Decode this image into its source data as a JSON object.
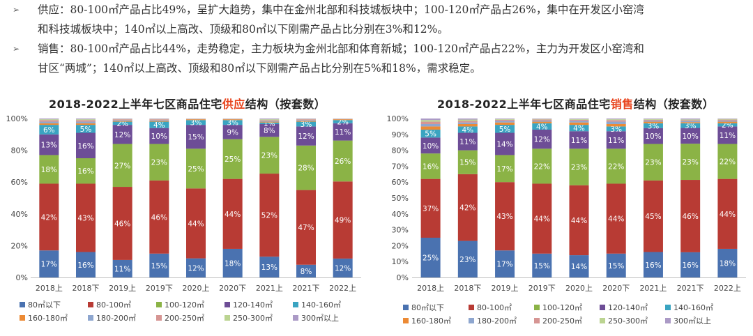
{
  "bullets": [
    {
      "marker": "➢",
      "lines": [
        "供应：80-100㎡产品占比49%，呈扩大趋势，集中在金州北部和科技城板块中；100-120㎡产品占26%，集中在开发区小窑湾",
        "和科技城板块中；140㎡以上高改、顶级和80㎡以下刚需产品占比分别在3%和12%。"
      ]
    },
    {
      "marker": "➢",
      "lines": [
        "销售：80-100㎡产品占比44%，走势稳定，主力板块为金州北部和体育新城；100-120㎡产品占22%，主力为开发区小窑湾和",
        "甘区“两城”；140㎡以上高改、顶级和80㎡以下刚需产品占比分别在5%和18%，需求稳定。"
      ]
    }
  ],
  "legend_labels": [
    "80㎡以下",
    "80-100㎡",
    "100-120㎡",
    "120-140㎡",
    "140-160㎡",
    "160-180㎡",
    "180-200㎡",
    "200-250㎡",
    "250-300㎡",
    "300㎡以上"
  ],
  "legend_colors": [
    "#4a72b0",
    "#b83b34",
    "#8bb346",
    "#6d4d96",
    "#3aa4c1",
    "#ec8a34",
    "#8ea6cf",
    "#d69593",
    "#bbd491",
    "#ab9ac6"
  ],
  "chart_data": [
    {
      "type": "bar",
      "stacked": true,
      "title_pre": "2018-2022上半年七区商品住宅",
      "title_hl": "供应",
      "title_post": "结构（按套数）",
      "categories": [
        "2018上",
        "2018下",
        "2019上",
        "2019下",
        "2020上",
        "2020下",
        "2021上",
        "2021下",
        "2022上"
      ],
      "ylim": [
        0,
        100
      ],
      "yticks": [
        "0%",
        "20%",
        "40%",
        "60%",
        "80%",
        "100%"
      ],
      "series": [
        {
          "values": [
            17,
            16,
            11,
            15,
            12,
            18,
            13,
            8,
            12
          ],
          "labels": [
            "17%",
            "16%",
            "11%",
            "15%",
            "12%",
            "18%",
            "13%",
            "8%",
            "12%"
          ]
        },
        {
          "values": [
            42,
            43,
            46,
            46,
            44,
            44,
            52,
            47,
            49
          ],
          "labels": [
            "42%",
            "43%",
            "46%",
            "46%",
            "44%",
            "44%",
            "52%",
            "47%",
            "49%"
          ]
        },
        {
          "values": [
            18,
            16,
            27,
            23,
            25,
            25,
            23,
            28,
            26
          ],
          "labels": [
            "18%",
            "16%",
            "27%",
            "23%",
            "25%",
            "25%",
            "23%",
            "28%",
            "26%"
          ]
        },
        {
          "values": [
            13,
            16,
            12,
            10,
            15,
            9,
            8,
            12,
            11
          ],
          "labels": [
            "13%",
            "16%",
            "12%",
            "10%",
            "15%",
            "9%",
            "8%",
            "12%",
            "11%"
          ]
        },
        {
          "values": [
            6,
            5,
            2,
            4,
            3,
            3,
            1,
            3,
            2
          ],
          "labels": [
            "6%",
            "5%",
            "2%",
            "4%",
            "3%",
            "3%",
            "1%",
            "3%",
            "2%"
          ]
        },
        {
          "values": [
            1,
            1,
            0.5,
            0.5,
            0.5,
            0.5,
            0.5,
            0.5,
            0.5
          ],
          "labels": []
        },
        {
          "values": [
            1,
            1,
            0.5,
            0.5,
            0.2,
            0.2,
            0.5,
            0.5,
            0.2
          ],
          "labels": []
        },
        {
          "values": [
            1,
            1,
            0.5,
            0.5,
            0.1,
            0.1,
            0.5,
            0.5,
            0.1
          ],
          "labels": []
        },
        {
          "values": [
            0.5,
            0.5,
            0.2,
            0.2,
            0.1,
            0.1,
            0.5,
            0.2,
            0.1
          ],
          "labels": []
        },
        {
          "values": [
            0.5,
            0.5,
            0.3,
            0.3,
            0.1,
            0.1,
            0.5,
            0.3,
            0.1
          ],
          "labels": []
        }
      ]
    },
    {
      "type": "bar",
      "stacked": true,
      "title_pre": "2018-2022上半年七区商品住宅",
      "title_hl": "销售",
      "title_post": "结构（按套数）",
      "categories": [
        "2018上",
        "2018下",
        "2019上",
        "2019下",
        "2020上",
        "2020下",
        "2021上",
        "2021下",
        "2022上"
      ],
      "ylim": [
        0,
        100
      ],
      "yticks": [
        "0%",
        "10%",
        "20%",
        "30%",
        "40%",
        "50%",
        "60%",
        "70%",
        "80%",
        "90%",
        "100%"
      ],
      "series": [
        {
          "values": [
            25,
            23,
            17,
            15,
            14,
            15,
            16,
            16,
            18
          ],
          "labels": [
            "25%",
            "23%",
            "17%",
            "15%",
            "14%",
            "15%",
            "16%",
            "16%",
            "18%"
          ]
        },
        {
          "values": [
            37,
            42,
            43,
            44,
            44,
            44,
            45,
            46,
            44
          ],
          "labels": [
            "37%",
            "42%",
            "43%",
            "44%",
            "44%",
            "44%",
            "45%",
            "46%",
            "44%"
          ]
        },
        {
          "values": [
            16,
            15,
            17,
            22,
            23,
            22,
            23,
            23,
            22
          ],
          "labels": [
            "16%",
            "15%",
            "17%",
            "22%",
            "23%",
            "22%",
            "23%",
            "23%",
            "22%"
          ]
        },
        {
          "values": [
            10,
            11,
            14,
            12,
            11,
            11,
            10,
            10,
            11
          ],
          "labels": [
            "10%",
            "11%",
            "14%",
            "12%",
            "11%",
            "11%",
            "10%",
            "10%",
            "11%"
          ]
        },
        {
          "values": [
            5,
            4,
            5,
            4,
            4,
            3,
            3,
            3,
            2
          ],
          "labels": [
            "5%",
            "4%",
            "5%",
            "4%",
            "4%",
            "3%",
            "3%",
            "3%",
            "2%"
          ]
        },
        {
          "values": [
            2,
            1.5,
            1.5,
            1,
            1.5,
            1.5,
            1,
            0.7,
            1
          ],
          "labels": []
        },
        {
          "values": [
            1.5,
            1,
            1,
            0.7,
            1,
            1.5,
            0.7,
            0.7,
            0.7
          ],
          "labels": []
        },
        {
          "values": [
            1.5,
            1,
            0.7,
            0.7,
            0.7,
            1,
            0.5,
            0.5,
            0.6
          ],
          "labels": []
        },
        {
          "values": [
            1,
            0.8,
            0.4,
            0.3,
            0.4,
            0.5,
            0.4,
            0.5,
            0.4
          ],
          "labels": []
        },
        {
          "values": [
            1,
            0.7,
            0.4,
            0.3,
            0.4,
            0.5,
            0.4,
            0.6,
            0.3
          ],
          "labels": []
        }
      ]
    }
  ]
}
